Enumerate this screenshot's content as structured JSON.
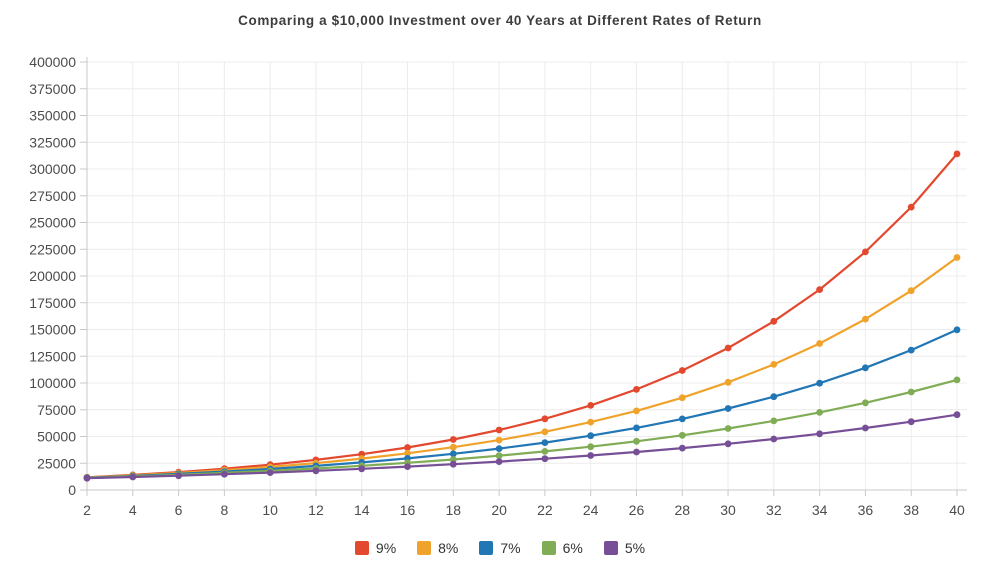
{
  "chart_data": {
    "type": "line",
    "title": "Comparing a $10,000 Investment over 40 Years at Different Rates of Return",
    "xlabel": "",
    "ylabel": "",
    "x": [
      2,
      4,
      6,
      8,
      10,
      12,
      14,
      16,
      18,
      20,
      22,
      24,
      26,
      28,
      30,
      32,
      34,
      36,
      38,
      40
    ],
    "xlim": [
      2,
      40
    ],
    "ylim": [
      0,
      400000
    ],
    "ytick_step": 25000,
    "grid": true,
    "legend_position": "bottom",
    "marker": "circle",
    "series": [
      {
        "label": "9%",
        "color": "#e2492f",
        "values": [
          11881,
          14116,
          16771,
          19926,
          23674,
          28127,
          33417,
          39703,
          47171,
          56044,
          66586,
          79111,
          93992,
          111671,
          132677,
          157633,
          187284,
          222512,
          264367,
          314094
        ]
      },
      {
        "label": "8%",
        "color": "#f0a32c",
        "values": [
          11664,
          13605,
          15869,
          18509,
          21589,
          25182,
          29372,
          34259,
          39960,
          46610,
          54365,
          63412,
          73964,
          86271,
          100627,
          117371,
          136901,
          159682,
          186253,
          217245
        ]
      },
      {
        "label": "7%",
        "color": "#2176b5",
        "values": [
          11449,
          13108,
          15007,
          17182,
          19672,
          22522,
          25785,
          29522,
          33799,
          38697,
          44304,
          50724,
          58074,
          66488,
          76123,
          87153,
          99781,
          114239,
          130793,
          149745
        ]
      },
      {
        "label": "6%",
        "color": "#80ac55",
        "values": [
          11236,
          12625,
          14185,
          15938,
          17908,
          20122,
          22609,
          25404,
          28543,
          32071,
          36035,
          40489,
          45494,
          51117,
          57435,
          64534,
          72510,
          81473,
          91543,
          102857
        ]
      },
      {
        "label": "5%",
        "color": "#774f96",
        "values": [
          11025,
          12155,
          13401,
          14775,
          16289,
          17959,
          19799,
          21829,
          24066,
          26533,
          29253,
          32251,
          35557,
          39201,
          43219,
          47649,
          52533,
          57918,
          63855,
          70400
        ]
      }
    ]
  },
  "styles": {
    "background": "#ffffff",
    "grid_color": "#ececec",
    "axis_color": "#c9c9c9",
    "tick_label_color": "#4d4d4d",
    "title_color": "#3d3d3d",
    "legend_text_color": "#333333"
  }
}
